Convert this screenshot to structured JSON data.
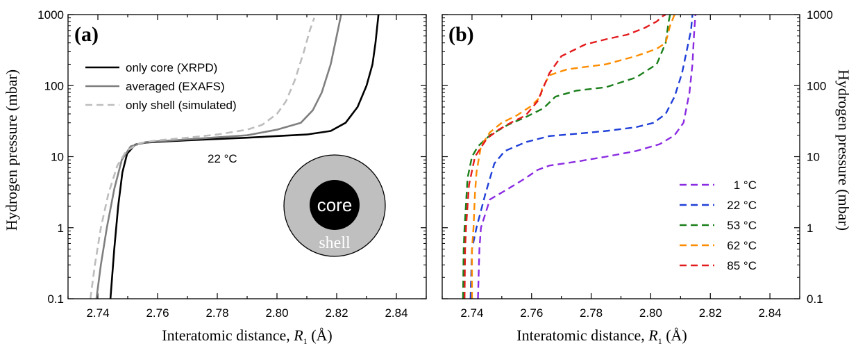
{
  "chart_data": [
    {
      "panel": "(a)",
      "type": "line",
      "xlabel": "Interatomic distance, R1 (Å)",
      "xlabel_main": "Interatomic distance, ",
      "xlabel_var": "R",
      "xlabel_sub": "1",
      "xlabel_unit": " (Å)",
      "ylabel": "Hydrogen pressure (mbar)",
      "xlim": [
        2.73,
        2.85
      ],
      "ylim": [
        0.1,
        1000
      ],
      "yscale": "log",
      "xticks": [
        "2.74",
        "2.76",
        "2.78",
        "2.80",
        "2.82",
        "2.84"
      ],
      "yticks": [
        "0.1",
        "1",
        "10",
        "100",
        "1000"
      ],
      "legend_position": "top-left",
      "annotation": "22 °C",
      "inset_labels": {
        "core": "core",
        "shell": "shell"
      },
      "series": [
        {
          "name": "only core (XRPD)",
          "color": "#000000",
          "dash": "solid",
          "width": 2.6,
          "points": [
            [
              2.7442,
              0.1
            ],
            [
              2.7455,
              0.5
            ],
            [
              2.7468,
              2.0
            ],
            [
              2.7482,
              6.0
            ],
            [
              2.7498,
              11.0
            ],
            [
              2.7525,
              14.8
            ],
            [
              2.756,
              15.8
            ],
            [
              2.77,
              17.0
            ],
            [
              2.79,
              18.5
            ],
            [
              2.81,
              20.5
            ],
            [
              2.818,
              23.0
            ],
            [
              2.823,
              30.0
            ],
            [
              2.827,
              50.0
            ],
            [
              2.83,
              100.0
            ],
            [
              2.832,
              200.0
            ],
            [
              2.833,
              400.0
            ],
            [
              2.834,
              1000.0
            ]
          ]
        },
        {
          "name": "averaged (EXAFS)",
          "color": "#7f7f7f",
          "dash": "solid",
          "width": 2.6,
          "points": [
            [
              2.7395,
              0.1
            ],
            [
              2.741,
              0.3
            ],
            [
              2.743,
              1.0
            ],
            [
              2.7455,
              3.5
            ],
            [
              2.748,
              9.0
            ],
            [
              2.751,
              14.0
            ],
            [
              2.756,
              16.0
            ],
            [
              2.77,
              17.5
            ],
            [
              2.79,
              20.0
            ],
            [
              2.8,
              24.0
            ],
            [
              2.808,
              30.0
            ],
            [
              2.812,
              45.0
            ],
            [
              2.815,
              80.0
            ],
            [
              2.818,
              200.0
            ],
            [
              2.82,
              500.0
            ],
            [
              2.8215,
              1000.0
            ]
          ]
        },
        {
          "name": "only shell (simulated)",
          "color": "#bdbdbd",
          "dash": "10,6",
          "width": 2.6,
          "points": [
            [
              2.7375,
              0.1
            ],
            [
              2.739,
              0.3
            ],
            [
              2.741,
              1.0
            ],
            [
              2.7435,
              3.0
            ],
            [
              2.7465,
              7.5
            ],
            [
              2.7495,
              12.0
            ],
            [
              2.754,
              15.5
            ],
            [
              2.76,
              17.0
            ],
            [
              2.77,
              18.5
            ],
            [
              2.78,
              20.5
            ],
            [
              2.79,
              24.0
            ],
            [
              2.795,
              28.0
            ],
            [
              2.8,
              40.0
            ],
            [
              2.803,
              60.0
            ],
            [
              2.806,
              120.0
            ],
            [
              2.809,
              300.0
            ],
            [
              2.811,
              600.0
            ],
            [
              2.8125,
              900.0
            ]
          ]
        }
      ]
    },
    {
      "panel": "(b)",
      "type": "line",
      "xlabel": "Interatomic distance, R1 (Å)",
      "xlabel_main": "Interatomic distance, ",
      "xlabel_var": "R",
      "xlabel_sub": "1",
      "xlabel_unit": " (Å)",
      "ylabel": "Hydrogen pressure (mbar)",
      "xlim": [
        2.73,
        2.85
      ],
      "ylim": [
        0.1,
        1000
      ],
      "yscale": "log",
      "xticks": [
        "2.74",
        "2.76",
        "2.78",
        "2.80",
        "2.82",
        "2.84"
      ],
      "yticks": [
        "0.1",
        "1",
        "10",
        "100",
        "1000"
      ],
      "legend_position": "bottom-right",
      "series": [
        {
          "name": "1 °C",
          "color": "#8a2be2",
          "dash": "10,6",
          "width": 2.4,
          "points": [
            [
              2.742,
              0.1
            ],
            [
              2.7425,
              0.5
            ],
            [
              2.743,
              1.0
            ],
            [
              2.746,
              2.5
            ],
            [
              2.752,
              3.5
            ],
            [
              2.758,
              5.0
            ],
            [
              2.762,
              6.5
            ],
            [
              2.766,
              7.5
            ],
            [
              2.775,
              8.5
            ],
            [
              2.785,
              10.0
            ],
            [
              2.795,
              12.0
            ],
            [
              2.803,
              15.0
            ],
            [
              2.808,
              20.0
            ],
            [
              2.811,
              30.0
            ],
            [
              2.813,
              80.0
            ],
            [
              2.814,
              200.0
            ],
            [
              2.8145,
              500.0
            ],
            [
              2.815,
              1000.0
            ]
          ]
        },
        {
          "name": "22 °C",
          "color": "#1f3fd8",
          "dash": "10,6",
          "width": 2.4,
          "points": [
            [
              2.7395,
              0.1
            ],
            [
              2.74,
              0.5
            ],
            [
              2.7415,
              1.0
            ],
            [
              2.7445,
              3.0
            ],
            [
              2.7475,
              8.0
            ],
            [
              2.751,
              12.0
            ],
            [
              2.758,
              16.0
            ],
            [
              2.766,
              19.5
            ],
            [
              2.775,
              21.0
            ],
            [
              2.785,
              23.0
            ],
            [
              2.795,
              26.0
            ],
            [
              2.801,
              30.0
            ],
            [
              2.805,
              40.0
            ],
            [
              2.808,
              70.0
            ],
            [
              2.8105,
              150.0
            ],
            [
              2.812,
              300.0
            ],
            [
              2.8135,
              600.0
            ],
            [
              2.814,
              1000.0
            ]
          ]
        },
        {
          "name": "53 °C",
          "color": "#1a7f1a",
          "dash": "10,6",
          "width": 2.4,
          "points": [
            [
              2.737,
              0.1
            ],
            [
              2.7372,
              0.5
            ],
            [
              2.7375,
              1.0
            ],
            [
              2.7385,
              5.0
            ],
            [
              2.74,
              10.0
            ],
            [
              2.742,
              14.0
            ],
            [
              2.746,
              20.0
            ],
            [
              2.752,
              28.0
            ],
            [
              2.758,
              36.0
            ],
            [
              2.764,
              48.0
            ],
            [
              2.768,
              70.0
            ],
            [
              2.775,
              85.0
            ],
            [
              2.785,
              95.0
            ],
            [
              2.795,
              130.0
            ],
            [
              2.802,
              200.0
            ],
            [
              2.805,
              400.0
            ],
            [
              2.806,
              800.0
            ],
            [
              2.8065,
              1000.0
            ]
          ]
        },
        {
          "name": "62 °C",
          "color": "#ff8c00",
          "dash": "10,6",
          "width": 2.4,
          "points": [
            [
              2.74,
              0.1
            ],
            [
              2.74,
              0.5
            ],
            [
              2.7405,
              1.0
            ],
            [
              2.741,
              3.0
            ],
            [
              2.7415,
              6.0
            ],
            [
              2.743,
              14.0
            ],
            [
              2.746,
              22.0
            ],
            [
              2.75,
              30.0
            ],
            [
              2.755,
              38.0
            ],
            [
              2.76,
              52.0
            ],
            [
              2.763,
              70.0
            ],
            [
              2.7635,
              90.0
            ],
            [
              2.766,
              140.0
            ],
            [
              2.772,
              170.0
            ],
            [
              2.785,
              200.0
            ],
            [
              2.795,
              260.0
            ],
            [
              2.802,
              330.0
            ],
            [
              2.805,
              400.0
            ],
            [
              2.8065,
              700.0
            ],
            [
              2.808,
              1000.0
            ]
          ]
        },
        {
          "name": "85 °C",
          "color": "#e31a1c",
          "dash": "10,6",
          "width": 2.4,
          "points": [
            [
              2.7375,
              0.1
            ],
            [
              2.7377,
              0.5
            ],
            [
              2.738,
              1.0
            ],
            [
              2.739,
              4.0
            ],
            [
              2.741,
              10.0
            ],
            [
              2.745,
              18.0
            ],
            [
              2.749,
              24.0
            ],
            [
              2.753,
              30.0
            ],
            [
              2.758,
              38.0
            ],
            [
              2.762,
              60.0
            ],
            [
              2.766,
              150.0
            ],
            [
              2.77,
              260.0
            ],
            [
              2.778,
              380.0
            ],
            [
              2.785,
              450.0
            ],
            [
              2.792,
              520.0
            ],
            [
              2.798,
              650.0
            ],
            [
              2.802,
              800.0
            ],
            [
              2.804,
              950.0
            ],
            [
              2.805,
              1000.0
            ]
          ]
        }
      ]
    }
  ]
}
